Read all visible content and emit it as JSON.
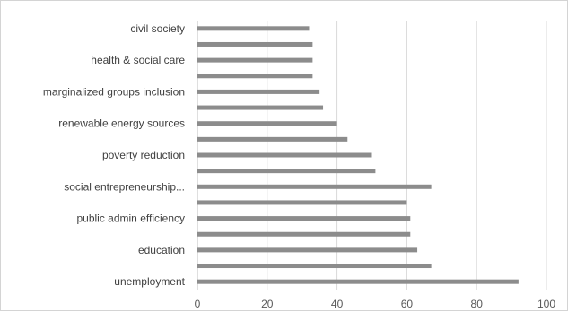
{
  "chart_data": {
    "type": "bar",
    "orientation": "horizontal",
    "categories": [
      "unemployment",
      "",
      "education",
      "",
      "public admin efficiency",
      "",
      "social entrepreneurship...",
      "",
      "poverty reduction",
      "",
      "renewable energy sources",
      "",
      "marginalized groups inclusion",
      "",
      "health & social care",
      "",
      "civil society"
    ],
    "values": [
      92,
      67,
      63,
      61,
      61,
      60,
      67,
      51,
      50,
      43,
      40,
      36,
      35,
      33,
      33,
      33,
      32
    ],
    "xlim": [
      0,
      100
    ],
    "x_ticks": [
      "0",
      "20",
      "40",
      "60",
      "80",
      "100"
    ],
    "grid": "vertical",
    "legend": "none",
    "bar_color": "#8c8c8c",
    "grid_color": "#d9d9d9"
  }
}
